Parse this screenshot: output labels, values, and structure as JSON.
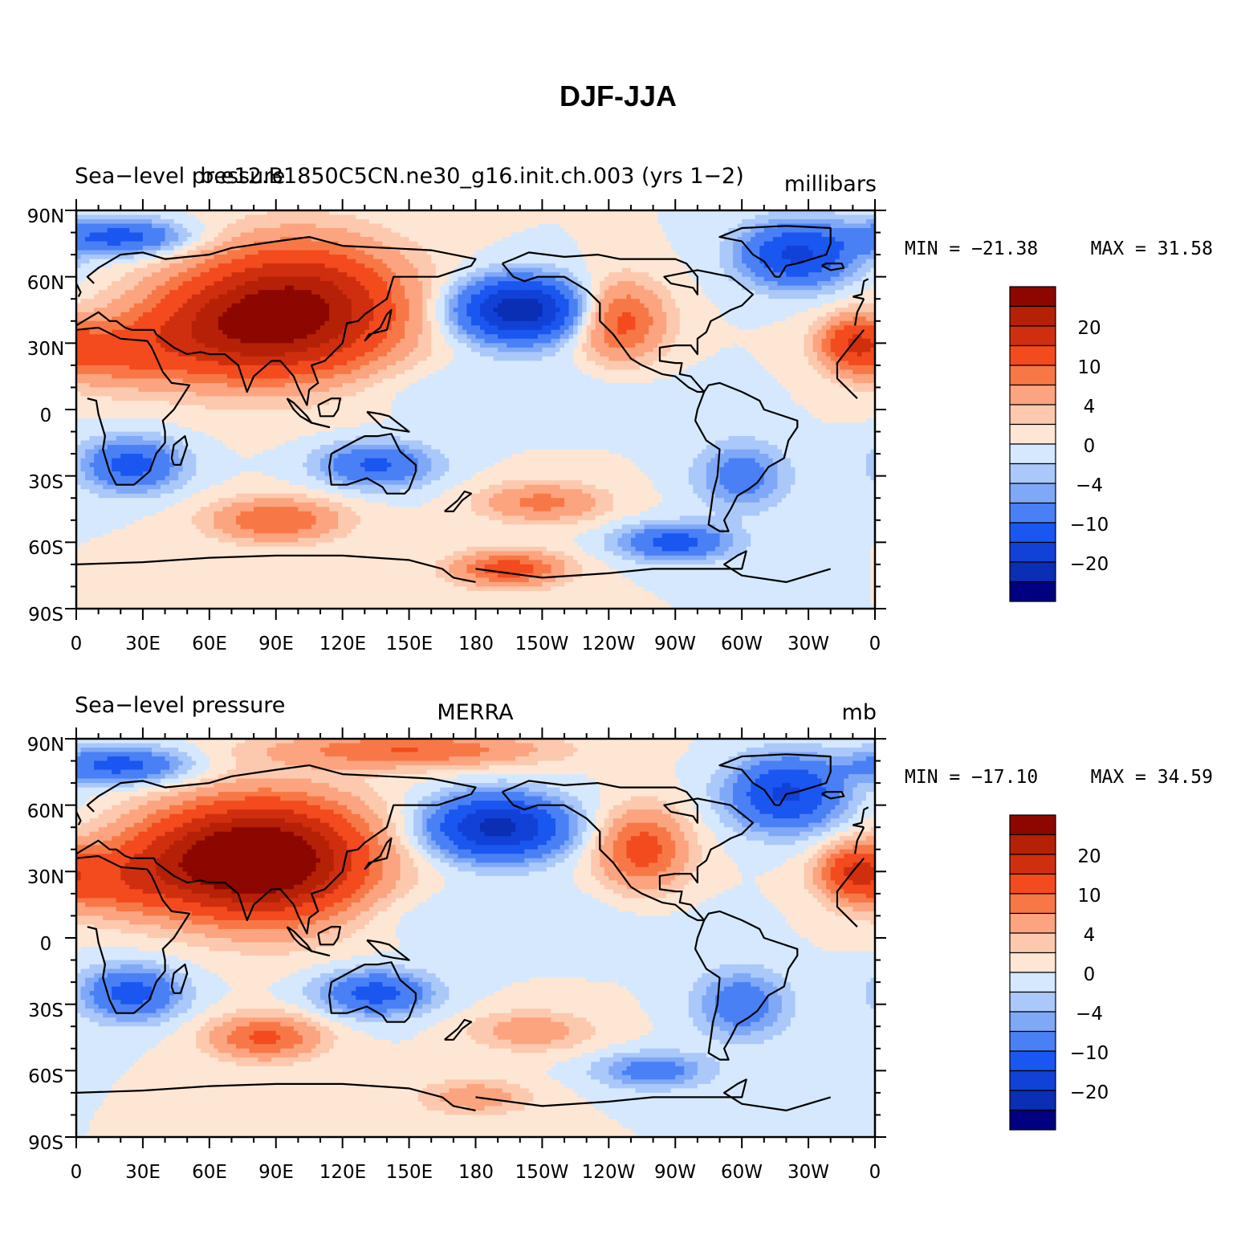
{
  "title": "DJF-JJA",
  "colors": [
    "#000080",
    "#0a2eb4",
    "#1141d6",
    "#1a56f0",
    "#4a80f5",
    "#7fa8f7",
    "#aac8f9",
    "#d5e8fd",
    "#fde6d4",
    "#fcc9ae",
    "#fba47f",
    "#f77846",
    "#f34b1e",
    "#cf2f0e",
    "#b52106",
    "#8c0700"
  ],
  "colorbar": {
    "labels": [
      "20",
      "10",
      "4",
      "0",
      "−4",
      "−10",
      "−20"
    ]
  },
  "axes": {
    "x_ticks": [
      "0",
      "30E",
      "60E",
      "90E",
      "120E",
      "150E",
      "180",
      "150W",
      "120W",
      "90W",
      "60W",
      "30W",
      "0"
    ],
    "y_ticks": [
      "90N",
      "60N",
      "30N",
      "0",
      "30S",
      "60S",
      "90S"
    ]
  },
  "panels": [
    {
      "left_title": "Sea−level pressure",
      "center_title": "b.e12.B1850C5CN.ne30_g16.init.ch.003 (yrs 1−2)",
      "right_title": "millibars",
      "min_label": "MIN = −21.38",
      "max_label": "MAX =   31.58",
      "field": [
        {
          "lon": 100,
          "lat": 45,
          "amp": 26,
          "rx": 45,
          "ry": 28
        },
        {
          "lon": 60,
          "lat": 35,
          "amp": 12,
          "rx": 40,
          "ry": 22
        },
        {
          "lon": 15,
          "lat": 25,
          "amp": 8,
          "rx": 30,
          "ry": 15
        },
        {
          "lon": 245,
          "lat": 40,
          "amp": 12,
          "rx": 20,
          "ry": 18
        },
        {
          "lon": 350,
          "lat": 30,
          "amp": 12,
          "rx": 15,
          "ry": 12
        },
        {
          "lon": 200,
          "lat": 45,
          "amp": -24,
          "rx": 28,
          "ry": 14
        },
        {
          "lon": 325,
          "lat": 70,
          "amp": -16,
          "rx": 25,
          "ry": 14
        },
        {
          "lon": 20,
          "lat": 78,
          "amp": -12,
          "rx": 30,
          "ry": 8
        },
        {
          "lon": 25,
          "lat": -25,
          "amp": -12,
          "rx": 22,
          "ry": 12
        },
        {
          "lon": 135,
          "lat": -25,
          "amp": -11,
          "rx": 25,
          "ry": 10
        },
        {
          "lon": 300,
          "lat": -30,
          "amp": -8,
          "rx": 20,
          "ry": 15
        },
        {
          "lon": 270,
          "lat": -60,
          "amp": -12,
          "rx": 25,
          "ry": 8
        },
        {
          "lon": 90,
          "lat": -50,
          "amp": 10,
          "rx": 30,
          "ry": 10
        },
        {
          "lon": 210,
          "lat": -42,
          "amp": 8,
          "rx": 28,
          "ry": 9
        },
        {
          "lon": 195,
          "lat": -72,
          "amp": 12,
          "rx": 25,
          "ry": 8
        },
        {
          "lon": 180,
          "lat": 10,
          "amp": -2,
          "rx": 80,
          "ry": 12
        }
      ]
    },
    {
      "left_title": "Sea−level pressure",
      "center_title": "MERRA",
      "right_title": "mb",
      "min_label": "MIN = −17.10",
      "max_label": "MAX =   34.59",
      "field": [
        {
          "lon": 90,
          "lat": 35,
          "amp": 28,
          "rx": 42,
          "ry": 26
        },
        {
          "lon": 55,
          "lat": 35,
          "amp": 14,
          "rx": 40,
          "ry": 22
        },
        {
          "lon": 15,
          "lat": 25,
          "amp": 8,
          "rx": 30,
          "ry": 15
        },
        {
          "lon": 150,
          "lat": 85,
          "amp": 10,
          "rx": 60,
          "ry": 8
        },
        {
          "lon": 255,
          "lat": 40,
          "amp": 12,
          "rx": 20,
          "ry": 18
        },
        {
          "lon": 350,
          "lat": 30,
          "amp": 12,
          "rx": 15,
          "ry": 12
        },
        {
          "lon": 190,
          "lat": 50,
          "amp": -22,
          "rx": 30,
          "ry": 14
        },
        {
          "lon": 320,
          "lat": 65,
          "amp": -16,
          "rx": 25,
          "ry": 16
        },
        {
          "lon": 20,
          "lat": 78,
          "amp": -12,
          "rx": 30,
          "ry": 8
        },
        {
          "lon": 25,
          "lat": -25,
          "amp": -12,
          "rx": 22,
          "ry": 12
        },
        {
          "lon": 135,
          "lat": -25,
          "amp": -12,
          "rx": 25,
          "ry": 10
        },
        {
          "lon": 300,
          "lat": -30,
          "amp": -9,
          "rx": 20,
          "ry": 15
        },
        {
          "lon": 260,
          "lat": -60,
          "amp": -8,
          "rx": 25,
          "ry": 8
        },
        {
          "lon": 85,
          "lat": -45,
          "amp": 11,
          "rx": 25,
          "ry": 10
        },
        {
          "lon": 205,
          "lat": -42,
          "amp": 6,
          "rx": 28,
          "ry": 9
        },
        {
          "lon": 180,
          "lat": -72,
          "amp": 6,
          "rx": 25,
          "ry": 8
        },
        {
          "lon": 180,
          "lat": 10,
          "amp": -2,
          "rx": 80,
          "ry": 12
        }
      ]
    }
  ]
}
